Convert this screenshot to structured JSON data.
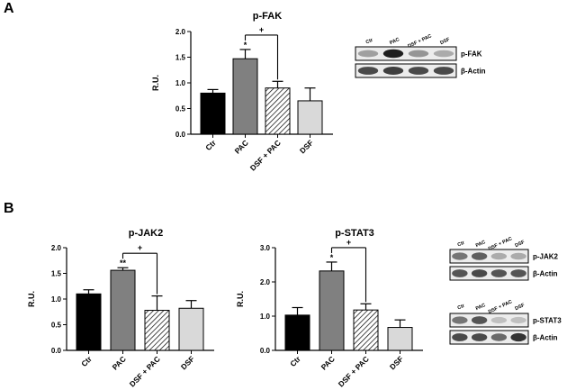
{
  "panels": [
    {
      "letter": "A"
    },
    {
      "letter": "B"
    }
  ],
  "chart_data": [
    {
      "type": "bar",
      "title": "p-FAK",
      "ylabel": "R.U.",
      "xlabel": "",
      "ylim": [
        0,
        2.0
      ],
      "yticks": [
        "0.0",
        "0.5",
        "1.0",
        "1.5",
        "2.0"
      ],
      "categories": [
        "Ctr",
        "PAC",
        "DSF + PAC",
        "DSF"
      ],
      "values": [
        0.8,
        1.47,
        0.9,
        0.65
      ],
      "errors": [
        0.07,
        0.18,
        0.13,
        0.25
      ],
      "bar_fills": [
        "#000000",
        "#808080",
        "hatch",
        "#d9d9d9"
      ],
      "annotations": [
        {
          "category": "PAC",
          "text": "*"
        }
      ],
      "comparison": {
        "from": "PAC",
        "to": "DSF + PAC",
        "symbol": "+"
      }
    },
    {
      "type": "bar",
      "title": "p-JAK2",
      "ylabel": "R.U.",
      "xlabel": "",
      "ylim": [
        0,
        2.0
      ],
      "yticks": [
        "0.0",
        "0.5",
        "1.0",
        "1.5",
        "2.0"
      ],
      "categories": [
        "Ctr",
        "PAC",
        "DSF + PAC",
        "DSF"
      ],
      "values": [
        1.1,
        1.56,
        0.78,
        0.82
      ],
      "errors": [
        0.08,
        0.05,
        0.28,
        0.15
      ],
      "bar_fills": [
        "#000000",
        "#808080",
        "hatch",
        "#d9d9d9"
      ],
      "annotations": [
        {
          "category": "PAC",
          "text": "**"
        }
      ],
      "comparison": {
        "from": "PAC",
        "to": "DSF + PAC",
        "symbol": "+"
      }
    },
    {
      "type": "bar",
      "title": "p-STAT3",
      "ylabel": "R.U.",
      "xlabel": "",
      "ylim": [
        0,
        3.0
      ],
      "yticks": [
        "0.0",
        "1.0",
        "2.0",
        "3.0"
      ],
      "categories": [
        "Ctr",
        "PAC",
        "DSF + PAC",
        "DSF"
      ],
      "values": [
        1.03,
        2.32,
        1.18,
        0.67
      ],
      "errors": [
        0.22,
        0.26,
        0.18,
        0.22
      ],
      "bar_fills": [
        "#000000",
        "#808080",
        "hatch",
        "#d9d9d9"
      ],
      "annotations": [
        {
          "category": "PAC",
          "text": "*"
        }
      ],
      "comparison": {
        "from": "PAC",
        "to": "DSF + PAC",
        "symbol": "+"
      }
    }
  ],
  "blots": [
    {
      "lanes": [
        "Ctr",
        "PAC",
        "DSF + PAC",
        "DSF"
      ],
      "rows": [
        {
          "label": "p-FAK",
          "intensity": [
            0.35,
            0.95,
            0.4,
            0.3
          ]
        },
        {
          "label": "β-Actin",
          "intensity": [
            0.75,
            0.8,
            0.75,
            0.75
          ]
        }
      ]
    },
    {
      "lanes": [
        "Ctr",
        "PAC",
        "DSF + PAC",
        "DSF"
      ],
      "rows": [
        {
          "label": "p-JAK2",
          "intensity": [
            0.55,
            0.65,
            0.3,
            0.3
          ]
        },
        {
          "label": "β-Actin",
          "intensity": [
            0.7,
            0.75,
            0.7,
            0.7
          ]
        }
      ]
    },
    {
      "lanes": [
        "Ctr",
        "PAC",
        "DSF + PAC",
        "DSF"
      ],
      "rows": [
        {
          "label": "p-STAT3",
          "intensity": [
            0.55,
            0.7,
            0.2,
            0.2
          ]
        },
        {
          "label": "β-Actin",
          "intensity": [
            0.75,
            0.75,
            0.6,
            0.85
          ]
        }
      ]
    }
  ]
}
